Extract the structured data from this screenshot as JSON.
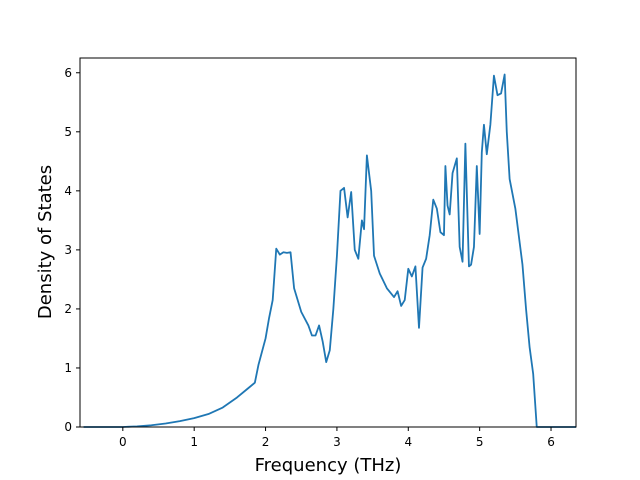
{
  "chart_data": {
    "type": "line",
    "title": "",
    "xlabel": "Frequency (THz)",
    "ylabel": "Density of States",
    "xlim": [
      -0.6,
      6.35
    ],
    "ylim": [
      0,
      6.25
    ],
    "xticks": [
      0,
      1,
      2,
      3,
      4,
      5,
      6
    ],
    "yticks": [
      0,
      1,
      2,
      3,
      4,
      5,
      6
    ],
    "grid": false,
    "legend": "none",
    "line_color": "#1f77b4",
    "series": [
      {
        "x": [
          -0.55,
          -0.3,
          0.0,
          0.2,
          0.4,
          0.6,
          0.8,
          1.0,
          1.2,
          1.4,
          1.6,
          1.75,
          1.85,
          1.9,
          2.0,
          2.05,
          2.1,
          2.15,
          2.2,
          2.25,
          2.3,
          2.35,
          2.4,
          2.5,
          2.6,
          2.65,
          2.7,
          2.75,
          2.8,
          2.85,
          2.9,
          2.95,
          3.0,
          3.05,
          3.1,
          3.15,
          3.2,
          3.25,
          3.3,
          3.35,
          3.38,
          3.42,
          3.48,
          3.52,
          3.6,
          3.7,
          3.8,
          3.85,
          3.9,
          3.95,
          4.0,
          4.05,
          4.1,
          4.15,
          4.2,
          4.25,
          4.3,
          4.35,
          4.4,
          4.45,
          4.5,
          4.52,
          4.55,
          4.58,
          4.62,
          4.68,
          4.72,
          4.76,
          4.8,
          4.85,
          4.88,
          4.92,
          4.96,
          5.0,
          5.03,
          5.06,
          5.1,
          5.15,
          5.2,
          5.25,
          5.3,
          5.35,
          5.38,
          5.42,
          5.5,
          5.6,
          5.65,
          5.7,
          5.75,
          5.8,
          5.85,
          6.0,
          6.35
        ],
        "y": [
          0,
          0,
          0,
          0.01,
          0.03,
          0.06,
          0.1,
          0.15,
          0.22,
          0.33,
          0.5,
          0.65,
          0.75,
          1.05,
          1.5,
          1.85,
          2.15,
          3.02,
          2.92,
          2.96,
          2.95,
          2.96,
          2.35,
          1.95,
          1.72,
          1.55,
          1.55,
          1.72,
          1.45,
          1.1,
          1.3,
          2.0,
          2.9,
          4.0,
          4.05,
          3.55,
          3.98,
          3.0,
          2.85,
          3.5,
          3.35,
          4.6,
          4.0,
          2.9,
          2.6,
          2.35,
          2.2,
          2.3,
          2.05,
          2.15,
          2.68,
          2.55,
          2.72,
          1.68,
          2.7,
          2.85,
          3.25,
          3.85,
          3.7,
          3.3,
          3.25,
          4.42,
          3.75,
          3.6,
          4.3,
          4.55,
          3.05,
          2.8,
          4.8,
          2.72,
          2.75,
          3.05,
          4.42,
          3.27,
          4.65,
          5.12,
          4.62,
          5.12,
          5.95,
          5.62,
          5.65,
          5.97,
          5.0,
          4.2,
          3.7,
          2.75,
          2.0,
          1.35,
          0.9,
          0.0,
          0.0,
          0.0,
          0.0
        ]
      }
    ]
  }
}
